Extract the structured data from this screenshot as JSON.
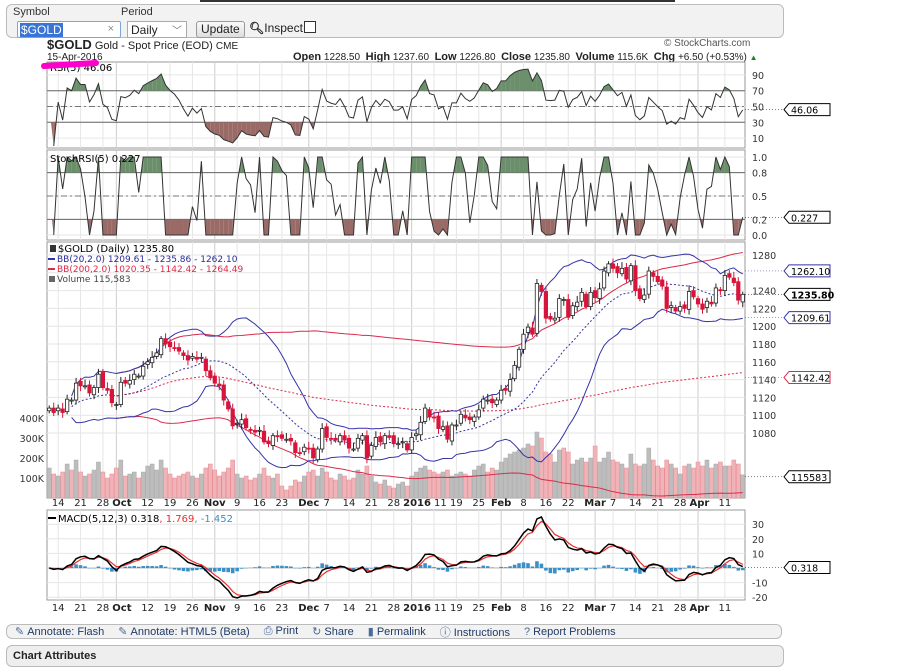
{
  "toolbar": {
    "symbol_label": "Symbol",
    "symbol_value": "$GOLD",
    "period_label": "Period",
    "period_value": "Daily",
    "update_label": "Update",
    "inspect_label": "Inspect",
    "inspect_checked": false
  },
  "header": {
    "symbol": "$GOLD",
    "name": "Gold - Spot Price (EOD)",
    "exchange": "CME",
    "date": "15-Apr-2016",
    "copyright": "© StockCharts.com",
    "open_label": "Open",
    "open": "1228.50",
    "high_label": "High",
    "high": "1237.60",
    "low_label": "Low",
    "low": "1226.80",
    "close_label": "Close",
    "close": "1235.80",
    "volume_label": "Volume",
    "volume": "115.6K",
    "chg_label": "Chg",
    "chg": "+6.50 (+0.53%)",
    "chg_icon": "triangle-up-icon"
  },
  "colors": {
    "up_fill": "#ffffff",
    "down_fill": "#d9143a",
    "bb20": "#3434a8",
    "bb200": "#d92b4a",
    "macd": "#000000",
    "signal": "#e83030",
    "histogram": "#3a8fc8",
    "overbought_fill": "#6b8f6b",
    "oversold_fill": "#9a6a66",
    "volume_up": "#bdbdbd",
    "volume_down": "#f0b4b8",
    "highlight": "#ff00cc"
  },
  "chart_data": {
    "type": "candlestick",
    "x_ticks": [
      {
        "label": "14",
        "i": 2
      },
      {
        "label": "21",
        "i": 7
      },
      {
        "label": "28",
        "i": 12
      },
      {
        "label": "Oct",
        "i": 15,
        "bold": true
      },
      {
        "label": "12",
        "i": 22
      },
      {
        "label": "19",
        "i": 27
      },
      {
        "label": "26",
        "i": 32
      },
      {
        "label": "Nov",
        "i": 37,
        "bold": true
      },
      {
        "label": "9",
        "i": 42
      },
      {
        "label": "16",
        "i": 47
      },
      {
        "label": "23",
        "i": 52
      },
      {
        "label": "Dec",
        "i": 58,
        "bold": true
      },
      {
        "label": "7",
        "i": 62
      },
      {
        "label": "14",
        "i": 67
      },
      {
        "label": "21",
        "i": 72
      },
      {
        "label": "28",
        "i": 77
      },
      {
        "label": "2016",
        "i": 81,
        "bold": true
      },
      {
        "label": "11",
        "i": 86
      },
      {
        "label": "19",
        "i": 91
      },
      {
        "label": "25",
        "i": 96
      },
      {
        "label": "Feb",
        "i": 101,
        "bold": true
      },
      {
        "label": "8",
        "i": 106
      },
      {
        "label": "16",
        "i": 111
      },
      {
        "label": "22",
        "i": 116
      },
      {
        "label": "Mar",
        "i": 122,
        "bold": true
      },
      {
        "label": "7",
        "i": 126
      },
      {
        "label": "14",
        "i": 131
      },
      {
        "label": "21",
        "i": 136
      },
      {
        "label": "28",
        "i": 141
      },
      {
        "label": "Apr",
        "i": 145,
        "bold": true
      },
      {
        "label": "11",
        "i": 151
      }
    ],
    "close": [
      1108,
      1103,
      1108,
      1103,
      1118,
      1117,
      1136,
      1133,
      1133,
      1125,
      1131,
      1146,
      1131,
      1128,
      1114,
      1112,
      1137,
      1136,
      1139,
      1146,
      1144,
      1155,
      1160,
      1165,
      1170,
      1186,
      1180,
      1177,
      1175,
      1172,
      1167,
      1162,
      1166,
      1163,
      1165,
      1150,
      1142,
      1136,
      1133,
      1117,
      1107,
      1088,
      1091,
      1095,
      1086,
      1083,
      1081,
      1083,
      1070,
      1068,
      1077,
      1076,
      1074,
      1073,
      1071,
      1058,
      1057,
      1064,
      1062,
      1052,
      1062,
      1085,
      1075,
      1073,
      1072,
      1077,
      1072,
      1063,
      1062,
      1074,
      1077,
      1052,
      1066,
      1075,
      1070,
      1077,
      1075,
      1068,
      1068,
      1070,
      1061,
      1075,
      1079,
      1092,
      1108,
      1098,
      1097,
      1085,
      1087,
      1073,
      1089,
      1089,
      1101,
      1097,
      1095,
      1098,
      1106,
      1118,
      1117,
      1114,
      1117,
      1128,
      1128,
      1140,
      1156,
      1174,
      1191,
      1199,
      1191,
      1248,
      1239,
      1209,
      1208,
      1209,
      1231,
      1230,
      1210,
      1223,
      1227,
      1238,
      1222,
      1238,
      1232,
      1242,
      1262,
      1270,
      1265,
      1260,
      1265,
      1253,
      1268,
      1240,
      1231,
      1235,
      1262,
      1256,
      1250,
      1245,
      1220,
      1223,
      1217,
      1222,
      1220,
      1239,
      1233,
      1225,
      1219,
      1228,
      1225,
      1243,
      1240,
      1257,
      1255,
      1249,
      1229.3,
      1235.8
    ],
    "volume_k": [
      150,
      120,
      110,
      130,
      170,
      140,
      190,
      130,
      110,
      120,
      140,
      180,
      130,
      100,
      120,
      150,
      190,
      110,
      120,
      130,
      100,
      130,
      160,
      170,
      140,
      190,
      150,
      120,
      100,
      110,
      120,
      130,
      110,
      100,
      120,
      150,
      170,
      140,
      110,
      130,
      150,
      190,
      120,
      100,
      110,
      90,
      100,
      120,
      150,
      110,
      100,
      120,
      60,
      40,
      60,
      90,
      80,
      110,
      130,
      140,
      110,
      150,
      130,
      100,
      90,
      120,
      110,
      90,
      100,
      140,
      120,
      160,
      110,
      80,
      70,
      90,
      60,
      50,
      70,
      80,
      60,
      110,
      130,
      150,
      160,
      140,
      130,
      120,
      130,
      140,
      110,
      120,
      130,
      120,
      110,
      140,
      160,
      170,
      130,
      150,
      140,
      180,
      200,
      220,
      230,
      240,
      250,
      270,
      260,
      330,
      300,
      230,
      220,
      180,
      240,
      250,
      230,
      170,
      190,
      200,
      180,
      200,
      260,
      180,
      200,
      230,
      190,
      180,
      170,
      150,
      220,
      170,
      160,
      170,
      250,
      190,
      160,
      150,
      190,
      170,
      150,
      120,
      160,
      170,
      150,
      180,
      160,
      190,
      150,
      170,
      180,
      160,
      160,
      190,
      170,
      116
    ],
    "rsi": {
      "label": "RSI(5) 46.06",
      "ticks": [
        "90",
        "70",
        "50",
        "30",
        "10"
      ],
      "value_box": "46.06",
      "overbought": 70,
      "oversold": 30
    },
    "stochrsi": {
      "label": "StochRSI(5) 0.227",
      "ticks": [
        "1.0",
        "0.8",
        "0.5",
        "0.2",
        "0.0"
      ],
      "value_box": "0.227"
    },
    "price": {
      "legend_main": "$GOLD (Daily) 1235.80",
      "legend_bb20": "BB(20,2.0) 1209.61 - 1235.86 - 1262.10",
      "legend_bb200": "BB(200,2.0) 1020.35 - 1142.42 - 1264.49",
      "legend_volume": "Volume 115,583",
      "ticks": [
        "1280",
        "1240",
        "1220",
        "1200",
        "1180",
        "1160",
        "1140",
        "1120",
        "1100",
        "1080"
      ],
      "ylim": [
        1080,
        1280
      ],
      "box_bb20_upper": "1262.10",
      "box_close": "1235.80",
      "box_bb20_lower": "1209.61",
      "box_bb200_mid": "1142.42",
      "box_volume": "115583",
      "volume_ticks": [
        "400K",
        "300K",
        "200K",
        "100K"
      ]
    },
    "macd": {
      "label_name": "MACD(5,12,3) 0.318",
      "label_signal": ", 1.769",
      "label_hist": ", -1.452",
      "ticks": [
        "30",
        "20",
        "10",
        "-10",
        "-20"
      ],
      "value_box": "0.318"
    }
  },
  "annotate_bar": [
    {
      "label": "Annotate: Flash",
      "icon": "pencil-icon"
    },
    {
      "label": "Annotate: HTML5 (Beta)",
      "icon": "pencil-icon"
    },
    {
      "label": "Print",
      "icon": "printer-icon"
    },
    {
      "label": "Share",
      "icon": "share-icon"
    },
    {
      "label": "Permalink",
      "icon": "bookmark-icon"
    },
    {
      "label": "Instructions",
      "icon": "info-icon"
    },
    {
      "label": "Report Problems",
      "icon": "question-icon"
    }
  ],
  "attributes_title": "Chart Attributes"
}
